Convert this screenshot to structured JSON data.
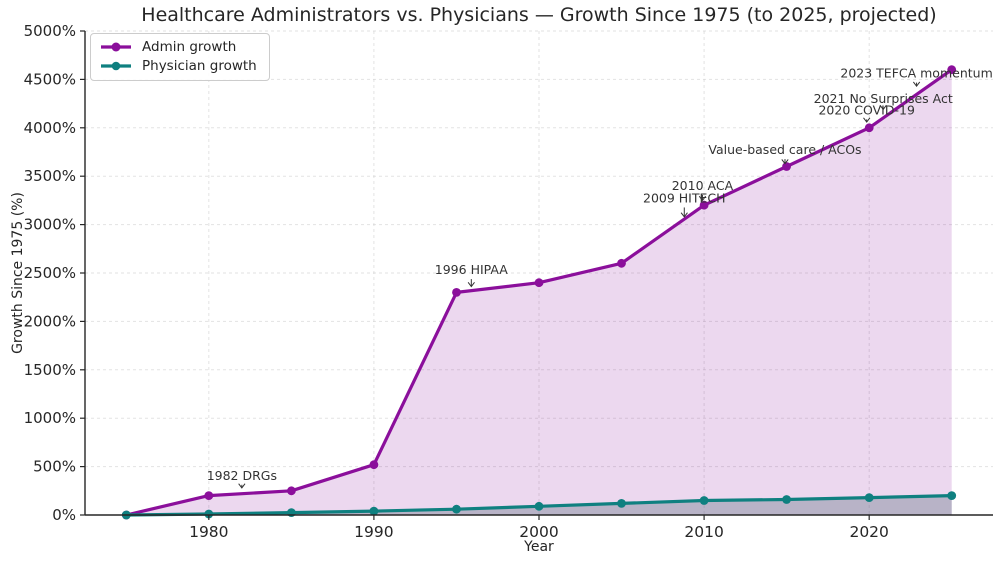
{
  "style": {
    "background": "#ffffff",
    "text_color": "#262626",
    "grid_color": "#cccccc",
    "spine_color": "#262626",
    "annotation_color": "#333333",
    "legend_border": "#cccccc"
  },
  "chart_data": {
    "type": "line",
    "title": "Healthcare Administrators vs. Physicians — Growth Since 1975 (to 2025, projected)",
    "xlabel": "Year",
    "ylabel": "Growth Since 1975 (%)",
    "legend_position": "upper-left",
    "grid": true,
    "xlim": [
      1972.5,
      2027.5
    ],
    "ylim": [
      0,
      5000
    ],
    "x": [
      1975,
      1980,
      1985,
      1990,
      1995,
      2000,
      2005,
      2010,
      2015,
      2020,
      2025
    ],
    "xticks": [
      1980,
      1990,
      2000,
      2010,
      2020
    ],
    "xtick_labels": [
      "1980",
      "1990",
      "2000",
      "2010",
      "2020"
    ],
    "yticks": [
      0,
      500,
      1000,
      1500,
      2000,
      2500,
      3000,
      3500,
      4000,
      4500,
      5000
    ],
    "ytick_labels": [
      "0%",
      "500%",
      "1000%",
      "1500%",
      "2000%",
      "2500%",
      "3000%",
      "3500%",
      "4000%",
      "4500%",
      "5000%"
    ],
    "series": [
      {
        "name": "Admin growth",
        "color": "#8B0F9B",
        "fill": "rgba(139,15,155,0.16)",
        "values": [
          0,
          200,
          250,
          520,
          2300,
          2400,
          2600,
          3200,
          3600,
          4000,
          4600
        ]
      },
      {
        "name": "Physician growth",
        "color": "#0F8080",
        "fill": "rgba(112,128,144,0.42)",
        "values": [
          0,
          10,
          25,
          40,
          60,
          90,
          120,
          150,
          160,
          180,
          200
        ]
      }
    ],
    "annotations": [
      {
        "text": "1982 DRGs",
        "x": 1982.0,
        "text_y": 405,
        "tip_y": 280
      },
      {
        "text": "1996 HIPAA",
        "x": 1995.9,
        "text_y": 2530,
        "tip_y": 2360
      },
      {
        "text": "2009 HITECH",
        "x": 2008.8,
        "text_y": 3270,
        "tip_y": 3080
      },
      {
        "text": "2010 ACA",
        "x": 2009.9,
        "text_y": 3400,
        "tip_y": 3250
      },
      {
        "text": "Value-based care / ACOs",
        "x": 2014.9,
        "text_y": 3770,
        "tip_y": 3630
      },
      {
        "text": "2020 COVID-19",
        "x": 2019.85,
        "text_y": 4180,
        "tip_y": 4060
      },
      {
        "text": "2021 No Surprises Act",
        "x": 2020.85,
        "text_y": 4300,
        "tip_y": 4190
      },
      {
        "text": "2023 TEFCA momentum",
        "x": 2022.87,
        "text_y": 4560,
        "tip_y": 4430
      }
    ]
  }
}
